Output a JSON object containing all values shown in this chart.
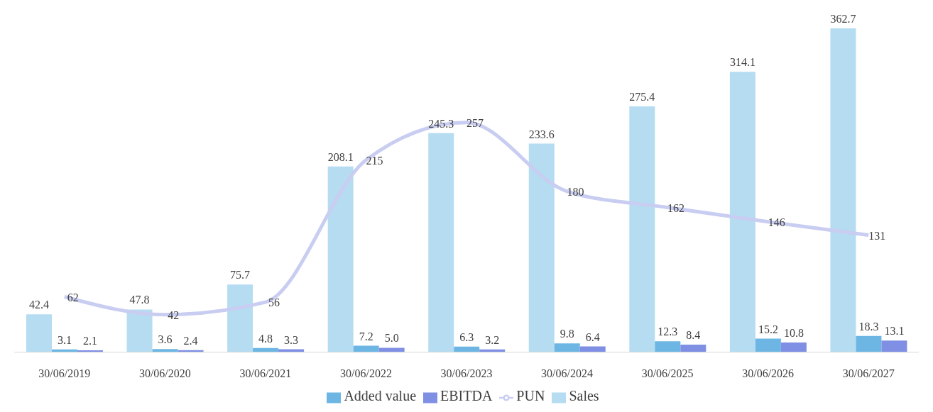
{
  "chart_data": {
    "type": "bar",
    "categories": [
      "30/06/2019",
      "30/06/2020",
      "30/06/2021",
      "30/06/2022",
      "30/06/2023",
      "30/06/2024",
      "30/06/2025",
      "30/06/2026",
      "30/06/2027"
    ],
    "series": [
      {
        "name": "Sales",
        "color": "#b5dcf1",
        "values": [
          42.4,
          47.8,
          75.7,
          208.1,
          245.3,
          233.6,
          275.4,
          314.1,
          362.7
        ],
        "value_labels": [
          "42.4",
          "47.8",
          "75.7",
          "208.1",
          "245.3",
          "233.6",
          "275.4",
          "314.1",
          "362.7"
        ]
      },
      {
        "name": "Added value",
        "color": "#6db6e3",
        "values": [
          3.1,
          3.6,
          4.8,
          7.2,
          6.3,
          9.8,
          12.3,
          15.2,
          18.3
        ],
        "value_labels": [
          "3.1",
          "3.6",
          "4.8",
          "7.2",
          "6.3",
          "9.8",
          "12.3",
          "15.2",
          "18.3"
        ]
      },
      {
        "name": "EBITDA",
        "color": "#7f8fe3",
        "values": [
          2.1,
          2.4,
          3.3,
          5.0,
          3.2,
          6.4,
          8.4,
          10.8,
          13.1
        ],
        "value_labels": [
          "2.1",
          "2.4",
          "3.3",
          "5.0",
          "3.2",
          "6.4",
          "8.4",
          "10.8",
          "13.1"
        ]
      },
      {
        "name": "PUN",
        "type": "line",
        "axis": "y2",
        "color": "#c9cdf1",
        "values": [
          62,
          42,
          56,
          215,
          257,
          180,
          162,
          146,
          131
        ],
        "value_labels": [
          "62",
          "42",
          "56",
          "215",
          "257",
          "180",
          "162",
          "146",
          "131"
        ]
      }
    ],
    "tick_labels": "x",
    "legend": "bottom",
    "grid": false
  }
}
